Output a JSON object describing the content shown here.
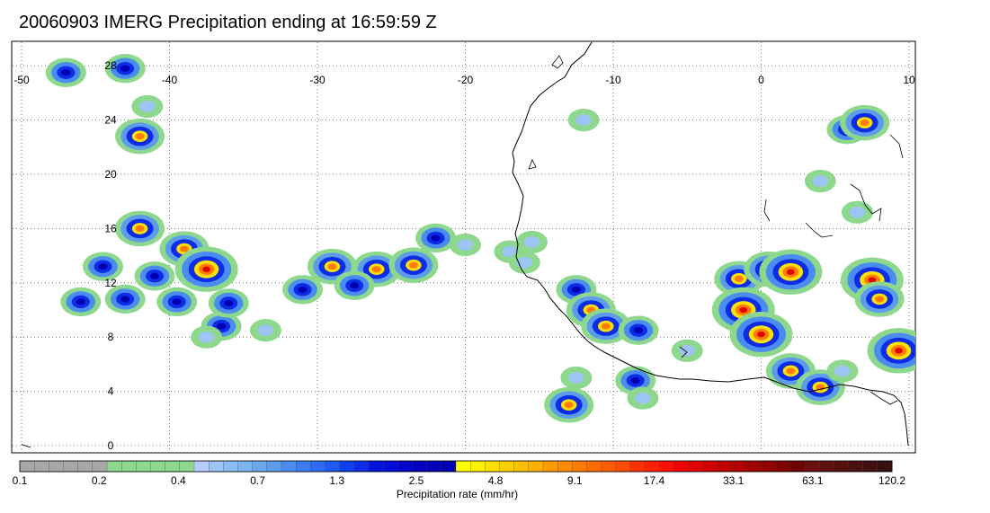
{
  "title": "20060903 IMERG Precipitation ending at 16:59:59 Z",
  "map": {
    "lon_range": [
      -50,
      10
    ],
    "lat_range": [
      -1,
      27
    ],
    "lon_ticks": [
      "-50",
      "-40",
      "-30",
      "-20",
      "-10",
      "0",
      "10"
    ],
    "lat_ticks": [
      "0",
      "4",
      "8",
      "12",
      "16",
      "20",
      "24",
      "28"
    ],
    "grid": "dotted"
  },
  "colorbar": {
    "title": "Precipitation rate (mm/hr)",
    "labels": [
      "0.1",
      "0.2",
      "0.4",
      "0.7",
      "1.3",
      "2.5",
      "4.8",
      "9.1",
      "17.4",
      "33.1",
      "63.1",
      "120.2"
    ],
    "colors": [
      "#a8a8a8",
      "#a8a8a8",
      "#a8a8a8",
      "#a8a8a8",
      "#a8a8a8",
      "#a8a8a8",
      "#8ed88e",
      "#8ed88e",
      "#8ed88e",
      "#8ed88e",
      "#8ed88e",
      "#8ed88e",
      "#b4ccff",
      "#9cc4f4",
      "#8cbcf4",
      "#7cb4f0",
      "#6ca8ec",
      "#5c9cea",
      "#4a8cf0",
      "#3c7cf0",
      "#2c6cf4",
      "#1c5cf4",
      "#0c40f0",
      "#0c2ce8",
      "#0014e0",
      "#000cd8",
      "#0004cc",
      "#0000c0",
      "#0000b8",
      "#0000b0",
      "#ffff00",
      "#fff000",
      "#ffe000",
      "#ffd000",
      "#ffc000",
      "#ffb000",
      "#ff9c00",
      "#ff8c00",
      "#ff7c00",
      "#ff6c00",
      "#ff5c00",
      "#ff4c00",
      "#ff3000",
      "#ff2000",
      "#ff1000",
      "#f00000",
      "#e00000",
      "#d00000",
      "#c00000",
      "#b00000",
      "#a00000",
      "#900000",
      "#800000",
      "#700000",
      "#6a1010",
      "#601010",
      "#561010",
      "#4c1010",
      "#421010",
      "#381010"
    ]
  },
  "precip_cells": [
    {
      "lon": -47,
      "lat": 27.5,
      "level": "medium"
    },
    {
      "lon": -43,
      "lat": 27.8,
      "level": "medium"
    },
    {
      "lon": -41.5,
      "lat": 25.0,
      "level": "low"
    },
    {
      "lon": -42,
      "lat": 22.8,
      "level": "high"
    },
    {
      "lon": -42,
      "lat": 16.0,
      "level": "high"
    },
    {
      "lon": -39,
      "lat": 14.5,
      "level": "high"
    },
    {
      "lon": -37.5,
      "lat": 13.0,
      "level": "extreme"
    },
    {
      "lon": -44.5,
      "lat": 13.2,
      "level": "medium"
    },
    {
      "lon": -41,
      "lat": 12.5,
      "level": "medium"
    },
    {
      "lon": -46,
      "lat": 10.6,
      "level": "medium"
    },
    {
      "lon": -43,
      "lat": 10.8,
      "level": "medium"
    },
    {
      "lon": -39.5,
      "lat": 10.6,
      "level": "medium"
    },
    {
      "lon": -36.5,
      "lat": 8.8,
      "level": "medium"
    },
    {
      "lon": -37.5,
      "lat": 8.0,
      "level": "low"
    },
    {
      "lon": -29,
      "lat": 13.2,
      "level": "high"
    },
    {
      "lon": -26,
      "lat": 13.0,
      "level": "high"
    },
    {
      "lon": -23.5,
      "lat": 13.3,
      "level": "high"
    },
    {
      "lon": -27.5,
      "lat": 11.8,
      "level": "medium"
    },
    {
      "lon": -31,
      "lat": 11.5,
      "level": "medium"
    },
    {
      "lon": -22,
      "lat": 15.3,
      "level": "medium"
    },
    {
      "lon": -20,
      "lat": 14.8,
      "level": "low"
    },
    {
      "lon": -15.5,
      "lat": 15.0,
      "level": "low"
    },
    {
      "lon": -17,
      "lat": 14.3,
      "level": "low"
    },
    {
      "lon": -16,
      "lat": 13.5,
      "level": "low"
    },
    {
      "lon": -12.5,
      "lat": 11.5,
      "level": "medium"
    },
    {
      "lon": -11.5,
      "lat": 10.0,
      "level": "high"
    },
    {
      "lon": -10.5,
      "lat": 8.8,
      "level": "high"
    },
    {
      "lon": -8.3,
      "lat": 8.5,
      "level": "medium"
    },
    {
      "lon": -13,
      "lat": 3.0,
      "level": "high"
    },
    {
      "lon": -12.5,
      "lat": 5.0,
      "level": "low"
    },
    {
      "lon": -8.5,
      "lat": 4.8,
      "level": "medium"
    },
    {
      "lon": -8.0,
      "lat": 3.5,
      "level": "low"
    },
    {
      "lon": -5,
      "lat": 7.0,
      "level": "low"
    },
    {
      "lon": -1.5,
      "lat": 12.3,
      "level": "high"
    },
    {
      "lon": 0.5,
      "lat": 13.0,
      "level": "high"
    },
    {
      "lon": 2.0,
      "lat": 12.8,
      "level": "extreme"
    },
    {
      "lon": -1.2,
      "lat": 10.0,
      "level": "extreme"
    },
    {
      "lon": 0.0,
      "lat": 8.2,
      "level": "extreme"
    },
    {
      "lon": 2.0,
      "lat": 5.5,
      "level": "high"
    },
    {
      "lon": 4.0,
      "lat": 4.3,
      "level": "high"
    },
    {
      "lon": 5.5,
      "lat": 5.5,
      "level": "low"
    },
    {
      "lon": 7.5,
      "lat": 12.2,
      "level": "extreme"
    },
    {
      "lon": 8.0,
      "lat": 10.8,
      "level": "high"
    },
    {
      "lon": 9.3,
      "lat": 7.0,
      "level": "extreme"
    },
    {
      "lon": 5.8,
      "lat": 23.3,
      "level": "medium"
    },
    {
      "lon": 7.0,
      "lat": 23.8,
      "level": "high"
    },
    {
      "lon": 4.0,
      "lat": 19.5,
      "level": "low"
    },
    {
      "lon": 6.5,
      "lat": 17.2,
      "level": "low"
    },
    {
      "lon": -12,
      "lat": 24.0,
      "level": "low"
    },
    {
      "lon": -33.5,
      "lat": 8.5,
      "level": "low"
    },
    {
      "lon": -36,
      "lat": 10.5,
      "level": "medium"
    }
  ]
}
